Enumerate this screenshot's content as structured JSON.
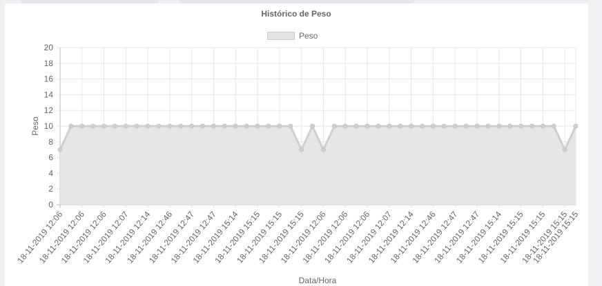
{
  "chart_data": {
    "type": "line",
    "title": "Histórico de Peso",
    "xlabel": "Data/Hora",
    "ylabel": "Peso",
    "ylim": [
      0,
      20
    ],
    "yticks": [
      0,
      2,
      4,
      6,
      8,
      10,
      12,
      14,
      16,
      18,
      20
    ],
    "grid": true,
    "legend_position": "top",
    "fill": true,
    "categories": [
      "18-11-2019 12:06",
      "18-11-2019 12:06",
      "18-11-2019 12:06",
      "18-11-2019 12:06",
      "18-11-2019 12:06",
      "18-11-2019 12:07",
      "18-11-2019 12:07",
      "18-11-2019 12:14",
      "18-11-2019 12:14",
      "18-11-2019 12:46",
      "18-11-2019 12:46",
      "18-11-2019 12:47",
      "18-11-2019 12:47",
      "18-11-2019 12:47",
      "18-11-2019 12:47",
      "18-11-2019 15:14",
      "18-11-2019 15:14",
      "18-11-2019 15:15",
      "18-11-2019 15:15",
      "18-11-2019 15:15",
      "18-11-2019 15:15",
      "18-11-2019 15:15",
      "18-11-2019 15:15",
      "18-11-2019 12:06",
      "18-11-2019 12:06",
      "18-11-2019 12:06",
      "18-11-2019 12:06",
      "18-11-2019 12:06",
      "18-11-2019 12:06",
      "18-11-2019 12:06",
      "18-11-2019 12:07",
      "18-11-2019 12:07",
      "18-11-2019 12:14",
      "18-11-2019 12:14",
      "18-11-2019 12:46",
      "18-11-2019 12:46",
      "18-11-2019 12:47",
      "18-11-2019 12:47",
      "18-11-2019 12:47",
      "18-11-2019 12:47",
      "18-11-2019 15:14",
      "18-11-2019 15:14",
      "18-11-2019 15:15",
      "18-11-2019 15:15",
      "18-11-2019 15:15",
      "18-11-2019 15:15",
      "18-11-2019 15:15",
      "18-11-2019 15:15"
    ],
    "series": [
      {
        "name": "Peso",
        "color": "#cfcfcf",
        "fill_color": "#e3e3e3",
        "values": [
          7,
          10,
          10,
          10,
          10,
          10,
          10,
          10,
          10,
          10,
          10,
          10,
          10,
          10,
          10,
          10,
          10,
          10,
          10,
          10,
          10,
          10,
          7,
          10,
          7,
          10,
          10,
          10,
          10,
          10,
          10,
          10,
          10,
          10,
          10,
          10,
          10,
          10,
          10,
          10,
          10,
          10,
          10,
          10,
          10,
          10,
          7,
          10
        ]
      }
    ]
  }
}
